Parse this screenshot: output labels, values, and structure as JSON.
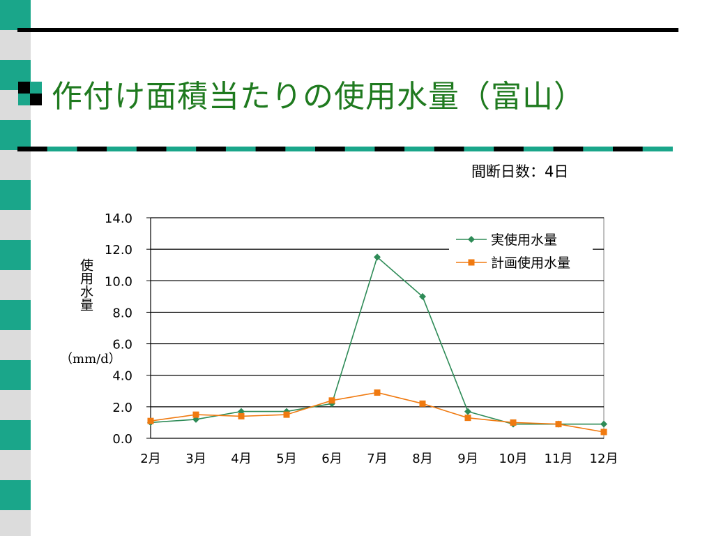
{
  "slide": {
    "title": "作付け面積当たりの使用水量（富山）",
    "note": "間断日数：4日",
    "colors": {
      "title": "#1f7a1f",
      "accent_teal": "#1aa68a",
      "strip_gray": "#dcdcdc"
    }
  },
  "chart_data": {
    "type": "line",
    "categories": [
      "2月",
      "3月",
      "4月",
      "5月",
      "6月",
      "7月",
      "8月",
      "9月",
      "10月",
      "11月",
      "12月"
    ],
    "series": [
      {
        "name": "実使用水量",
        "color": "#2e8b57",
        "marker": "diamond",
        "values": [
          1.0,
          1.2,
          1.7,
          1.7,
          2.2,
          11.5,
          9.0,
          1.7,
          0.9,
          0.9,
          0.9
        ]
      },
      {
        "name": "計画使用水量",
        "color": "#f07a10",
        "marker": "square",
        "values": [
          1.1,
          1.5,
          1.4,
          1.5,
          2.4,
          2.9,
          2.2,
          1.3,
          1.0,
          0.9,
          0.4
        ]
      }
    ],
    "yticks": [
      "0.0",
      "2.0",
      "4.0",
      "6.0",
      "8.0",
      "10.0",
      "12.0",
      "14.0"
    ],
    "ylim": [
      0,
      14
    ],
    "ylabel": "使用水量",
    "yunit": "（mm/d）",
    "legend": "top-right",
    "grid": true
  }
}
